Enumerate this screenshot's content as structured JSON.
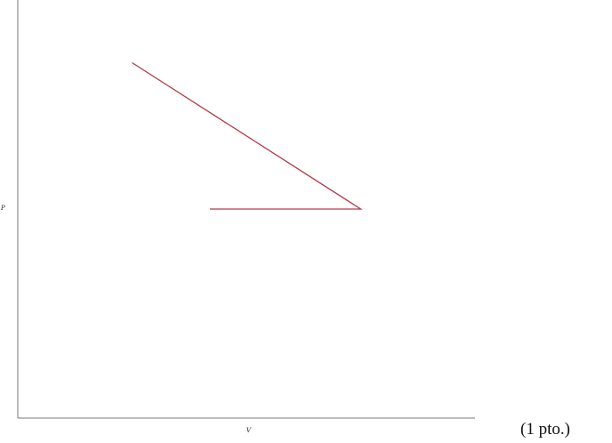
{
  "points_note": "(1 pto.)",
  "chart_data": {
    "type": "line",
    "xlabel": "V",
    "ylabel": "P",
    "xlim": [
      0,
      10
    ],
    "ylim": [
      0,
      10
    ],
    "grid": false,
    "series": [
      {
        "color": "#b03a48",
        "x": [
          2.5,
          7.5,
          4.2
        ],
        "y": [
          8.5,
          5.0,
          5.0
        ]
      }
    ]
  }
}
